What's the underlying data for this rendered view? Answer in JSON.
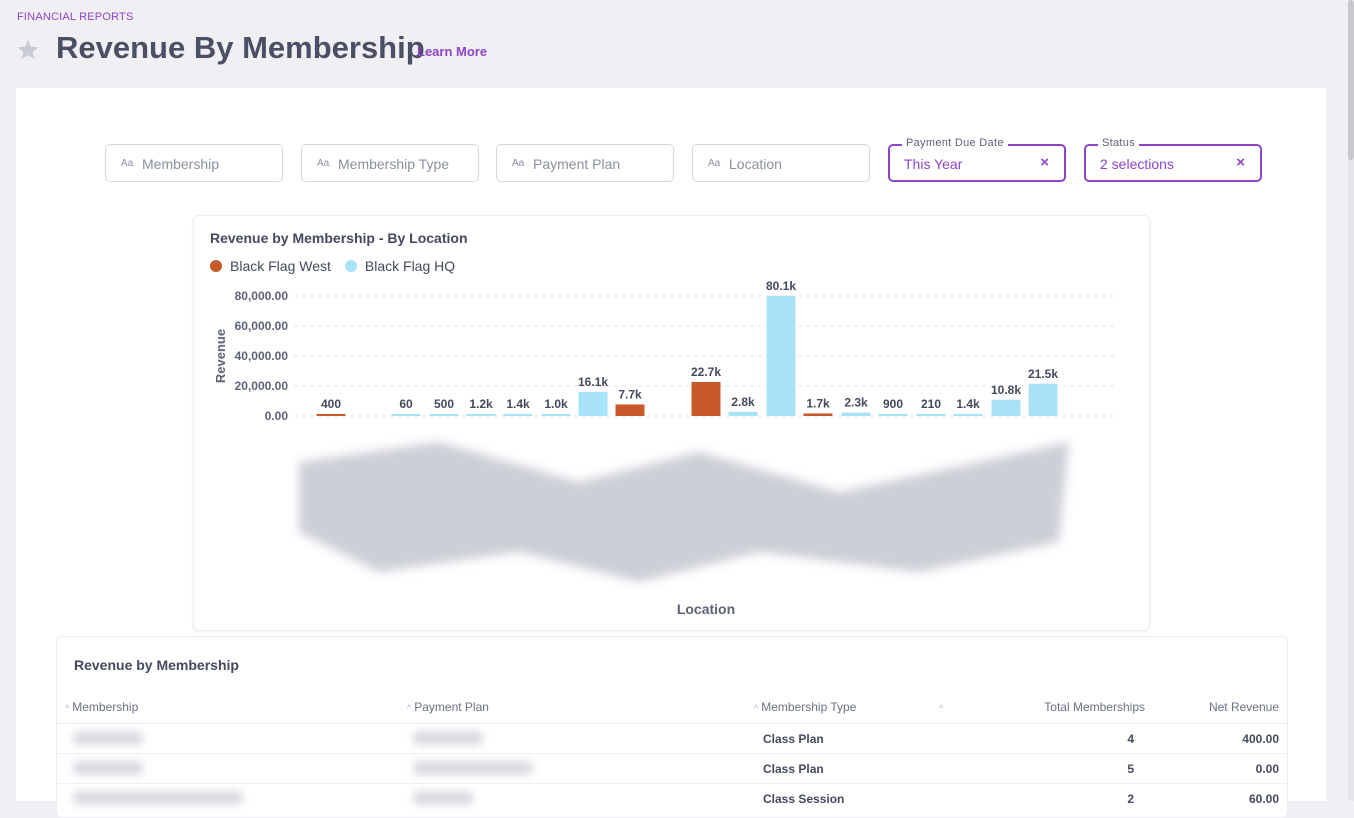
{
  "breadcrumb": "FINANCIAL REPORTS",
  "page_title": "Revenue By Membership",
  "learn_more": "Learn More",
  "filters": [
    {
      "icon": "Aa",
      "placeholder": "Membership"
    },
    {
      "icon": "Aa",
      "placeholder": "Membership Type"
    },
    {
      "icon": "Aa",
      "placeholder": "Payment Plan"
    },
    {
      "icon": "Aa",
      "placeholder": "Location"
    }
  ],
  "active_filters": [
    {
      "label": "Payment Due Date",
      "value": "This Year",
      "clear": "×"
    },
    {
      "label": "Status",
      "value": "2 selections",
      "clear": "×"
    }
  ],
  "colors": {
    "accent": "#8e44c8",
    "west": "#c85a2a",
    "hq": "#a9e3f8"
  },
  "chart_data": {
    "type": "bar",
    "title": "Revenue by Membership - By Location",
    "xlabel": "Location",
    "ylabel": "Revenue",
    "ylim": [
      0,
      80000
    ],
    "yticks": [
      "0.00",
      "20,000.00",
      "40,000.00",
      "60,000.00",
      "80,000.00"
    ],
    "legend": "top-left",
    "grid": true,
    "series": [
      {
        "name": "Black Flag West",
        "color": "#c85a2a"
      },
      {
        "name": "Black Flag HQ",
        "color": "#a9e3f8"
      }
    ],
    "bars": [
      {
        "series": 0,
        "value": 400,
        "label": "400"
      },
      {
        "series": 1,
        "value": 60,
        "label": "60"
      },
      {
        "series": 1,
        "value": 500,
        "label": "500"
      },
      {
        "series": 1,
        "value": 1200,
        "label": "1.2k"
      },
      {
        "series": 1,
        "value": 1400,
        "label": "1.4k"
      },
      {
        "series": 1,
        "value": 1000,
        "label": "1.0k"
      },
      {
        "series": 1,
        "value": 16100,
        "label": "16.1k"
      },
      {
        "series": 0,
        "value": 7700,
        "label": "7.7k"
      },
      {
        "series": 0,
        "value": 22700,
        "label": "22.7k"
      },
      {
        "series": 1,
        "value": 2800,
        "label": "2.8k"
      },
      {
        "series": 1,
        "value": 80100,
        "label": "80.1k"
      },
      {
        "series": 0,
        "value": 1700,
        "label": "1.7k"
      },
      {
        "series": 1,
        "value": 2300,
        "label": "2.3k"
      },
      {
        "series": 1,
        "value": 900,
        "label": "900"
      },
      {
        "series": 1,
        "value": 210,
        "label": "210"
      },
      {
        "series": 1,
        "value": 1400,
        "label": "1.4k"
      },
      {
        "series": 1,
        "value": 10800,
        "label": "10.8k"
      },
      {
        "series": 1,
        "value": 21500,
        "label": "21.5k"
      }
    ]
  },
  "table": {
    "title": "Revenue by Membership",
    "columns": [
      "Membership",
      "Payment Plan",
      "Membership Type",
      "Total Memberships",
      "Net Revenue"
    ],
    "rows": [
      {
        "type": "Class Plan",
        "total": "4",
        "revenue": "400.00"
      },
      {
        "type": "Class Plan",
        "total": "5",
        "revenue": "0.00"
      },
      {
        "type": "Class Session",
        "total": "2",
        "revenue": "60.00"
      }
    ]
  }
}
